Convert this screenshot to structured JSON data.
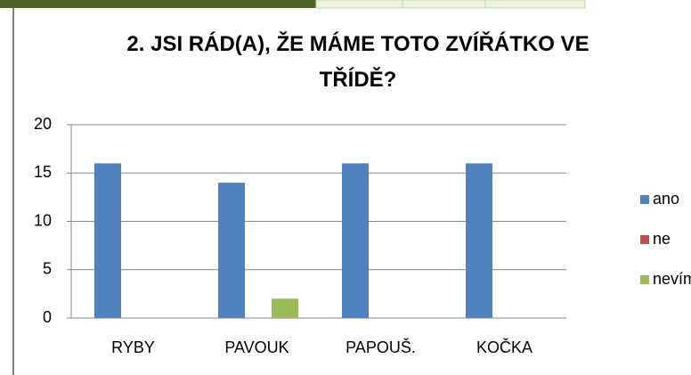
{
  "chart_data": {
    "type": "bar",
    "title": "2. JSI RÁD(A), ŽE MÁME TOTO ZVÍŘÁTKO VE TŘÍDĚ?",
    "categories": [
      "RYBY",
      "PAVOUK",
      "PAPOUŠ.",
      "KOČKA"
    ],
    "series": [
      {
        "name": "ano",
        "color": "#4f81bd",
        "values": [
          16,
          14,
          16,
          16
        ]
      },
      {
        "name": "ne",
        "color": "#c0504d",
        "values": [
          0,
          0,
          0,
          0
        ]
      },
      {
        "name": "nevím",
        "color": "#9bbb59",
        "values": [
          0,
          2,
          0,
          0
        ]
      }
    ],
    "ylim": [
      0,
      20
    ],
    "yticks": [
      0,
      5,
      10,
      15,
      20
    ],
    "grid": true,
    "legend": "right"
  }
}
